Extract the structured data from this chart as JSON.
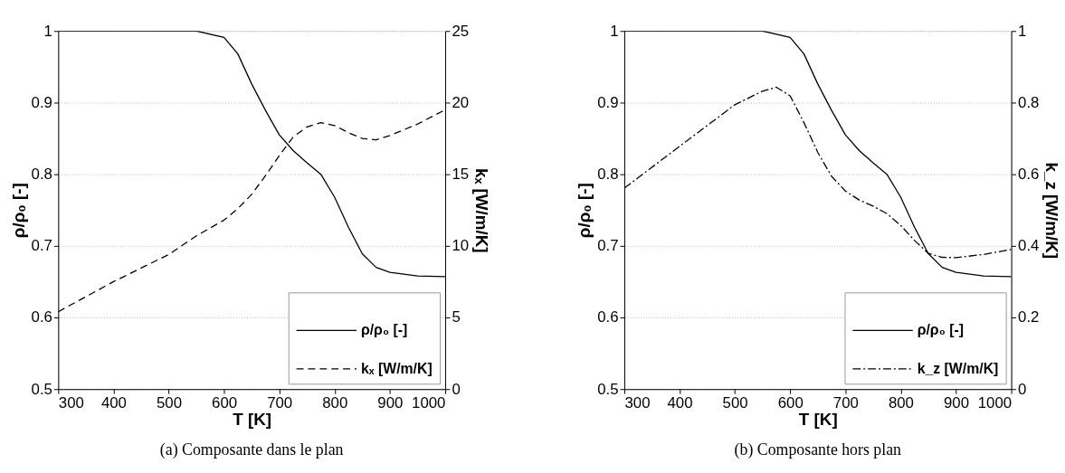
{
  "chart_data": [
    {
      "type": "line",
      "xlabel": "T [K]",
      "ylabel": "ρ/ρ₀ [-]",
      "y2label": "kₓ [W/m/K]",
      "xlim": [
        300,
        1000
      ],
      "xticks": [
        300,
        400,
        500,
        600,
        700,
        800,
        900,
        1000
      ],
      "ylim": [
        0.5,
        1
      ],
      "yticks": [
        0.5,
        0.6,
        0.7,
        0.8,
        0.9,
        1
      ],
      "y2lim": [
        0,
        25
      ],
      "y2ticks": [
        0,
        5,
        10,
        15,
        20,
        25
      ],
      "grid": "y",
      "legend": "bottom right",
      "annotations": [
        "(a)  Composante dans le plan"
      ],
      "series": [
        {
          "name": "ρ/ρ₀ [-]",
          "color": "#000000",
          "line_style": "solid",
          "x": [
            300,
            500,
            550,
            600,
            625,
            650,
            675,
            700,
            725,
            750,
            775,
            800,
            825,
            850,
            875,
            900,
            950,
            1000
          ],
          "values": [
            1.0,
            1.0,
            1.0,
            0.991,
            0.968,
            0.926,
            0.889,
            0.855,
            0.833,
            0.816,
            0.8,
            0.768,
            0.726,
            0.689,
            0.67,
            0.663,
            0.658,
            0.657
          ]
        },
        {
          "name": "kₓ [W/m/K]",
          "color": "#000000",
          "line_style": "dashed",
          "axis": "y2",
          "x": [
            300,
            400,
            500,
            550,
            600,
            625,
            650,
            675,
            700,
            725,
            750,
            775,
            800,
            825,
            850,
            875,
            900,
            950,
            1000
          ],
          "values": [
            5.4,
            7.5,
            9.4,
            10.7,
            11.8,
            12.6,
            13.6,
            14.9,
            16.3,
            17.6,
            18.3,
            18.6,
            18.4,
            17.9,
            17.5,
            17.4,
            17.7,
            18.5,
            19.5
          ]
        }
      ]
    },
    {
      "type": "line",
      "xlabel": "T [K]",
      "ylabel": "ρ/ρ₀ [-]",
      "y2label": "k_z [W/m/K]",
      "xlim": [
        300,
        1000
      ],
      "xticks": [
        300,
        400,
        500,
        600,
        700,
        800,
        900,
        1000
      ],
      "ylim": [
        0.5,
        1
      ],
      "yticks": [
        0.5,
        0.6,
        0.7,
        0.8,
        0.9,
        1
      ],
      "y2lim": [
        0,
        1
      ],
      "y2ticks": [
        0,
        0.2,
        0.4,
        0.6,
        0.8,
        1
      ],
      "grid": "y",
      "legend": "bottom right",
      "annotations": [
        "(b)  Composante hors plan"
      ],
      "series": [
        {
          "name": "ρ/ρ₀ [-]",
          "color": "#000000",
          "line_style": "solid",
          "x": [
            300,
            500,
            550,
            600,
            625,
            650,
            675,
            700,
            725,
            750,
            775,
            800,
            825,
            850,
            875,
            900,
            950,
            1000
          ],
          "values": [
            1.0,
            1.0,
            1.0,
            0.991,
            0.968,
            0.926,
            0.889,
            0.855,
            0.833,
            0.816,
            0.8,
            0.768,
            0.726,
            0.689,
            0.67,
            0.663,
            0.658,
            0.657
          ]
        },
        {
          "name": "k_z [W/m/K]",
          "color": "#000000",
          "line_style": "dashdot",
          "axis": "y2",
          "x": [
            300,
            400,
            500,
            550,
            575,
            600,
            625,
            650,
            675,
            700,
            725,
            750,
            775,
            800,
            825,
            850,
            875,
            900,
            950,
            1000
          ],
          "values": [
            0.561,
            0.678,
            0.794,
            0.832,
            0.843,
            0.819,
            0.744,
            0.661,
            0.594,
            0.553,
            0.528,
            0.511,
            0.49,
            0.457,
            0.415,
            0.379,
            0.368,
            0.367,
            0.376,
            0.39
          ]
        }
      ]
    }
  ]
}
